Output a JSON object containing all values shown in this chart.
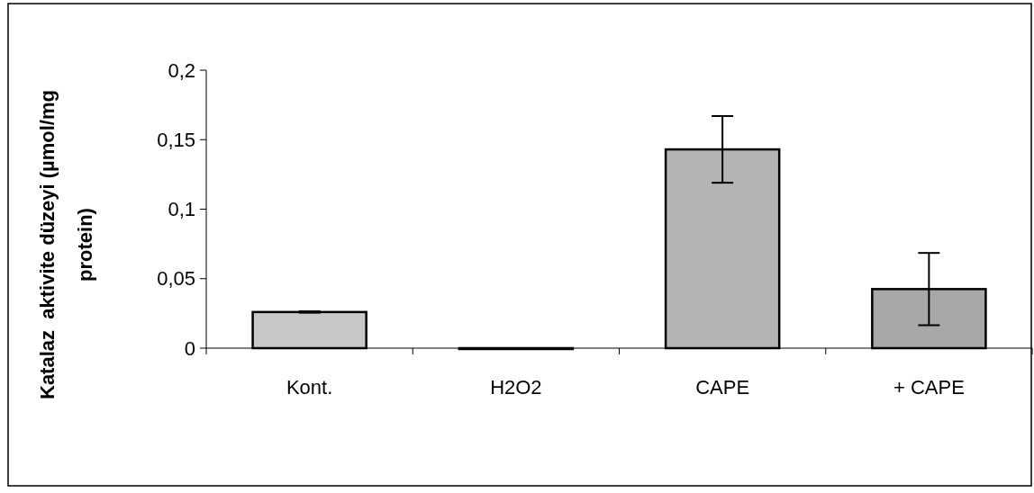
{
  "chart_data": {
    "type": "bar",
    "ylabel": "Katalaz  aktivite düzeyi (µmol/mg\nprotein)",
    "categories": [
      "Kont.",
      "H2O2",
      "CAPE",
      "+ CAPE"
    ],
    "values": [
      0.026,
      0,
      0.143,
      0.0425
    ],
    "errors": [
      0.0005,
      null,
      0.024,
      0.026
    ],
    "colors": [
      "#c8c8c8",
      "#c8c8c8",
      "#b4b4b4",
      "#a8a8a8"
    ],
    "ylim": [
      0,
      0.2
    ],
    "yticks": [
      {
        "value": 0,
        "label": "0"
      },
      {
        "value": 0.05,
        "label": "0,05"
      },
      {
        "value": 0.1,
        "label": "0,1"
      },
      {
        "value": 0.15,
        "label": "0,15"
      },
      {
        "value": 0.2,
        "label": "0,2"
      }
    ],
    "grid": false
  }
}
